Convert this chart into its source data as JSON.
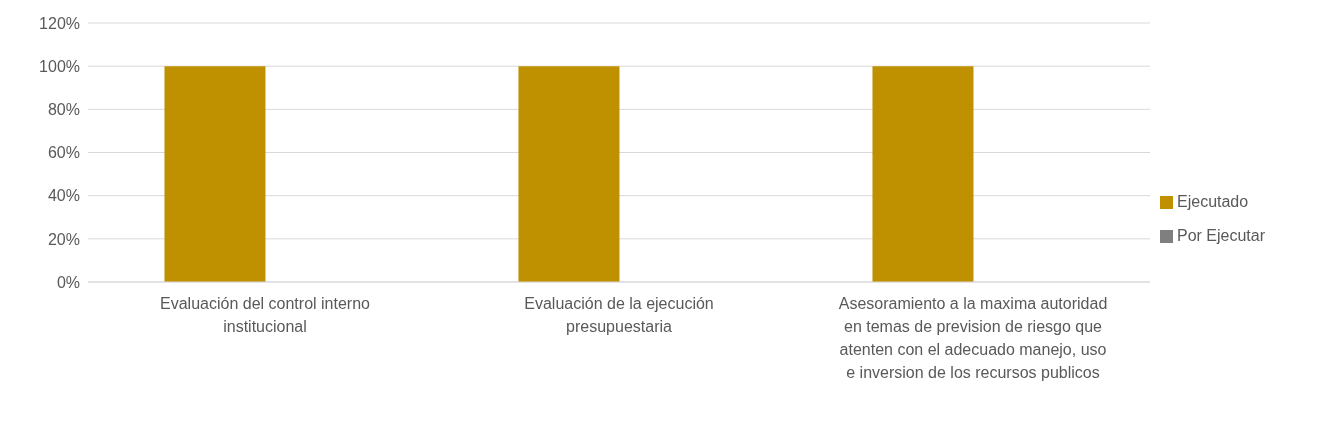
{
  "chart_data": {
    "type": "bar",
    "categories": [
      "Evaluación del control interno institucional",
      "Evaluación de la ejecución presupuestaria",
      "Asesoramiento  a la maxima autoridad en temas de prevision de riesgo que atenten con el adecuado manejo, uso e inversion de los recursos publicos"
    ],
    "series": [
      {
        "name": "Ejecutado",
        "color": "#bf9000",
        "values": [
          100,
          100,
          100
        ]
      },
      {
        "name": "Por Ejecutar",
        "color": "#7f7f7f",
        "values": [
          0,
          0,
          0
        ]
      }
    ],
    "ylim": [
      0,
      120
    ],
    "yticks": [
      {
        "value": 0,
        "label": "0%"
      },
      {
        "value": 20,
        "label": "20%"
      },
      {
        "value": 40,
        "label": "40%"
      },
      {
        "value": 60,
        "label": "60%"
      },
      {
        "value": 80,
        "label": "80%"
      },
      {
        "value": 100,
        "label": "100%"
      },
      {
        "value": 120,
        "label": "120%"
      }
    ],
    "grid": "y",
    "legend": "right"
  }
}
